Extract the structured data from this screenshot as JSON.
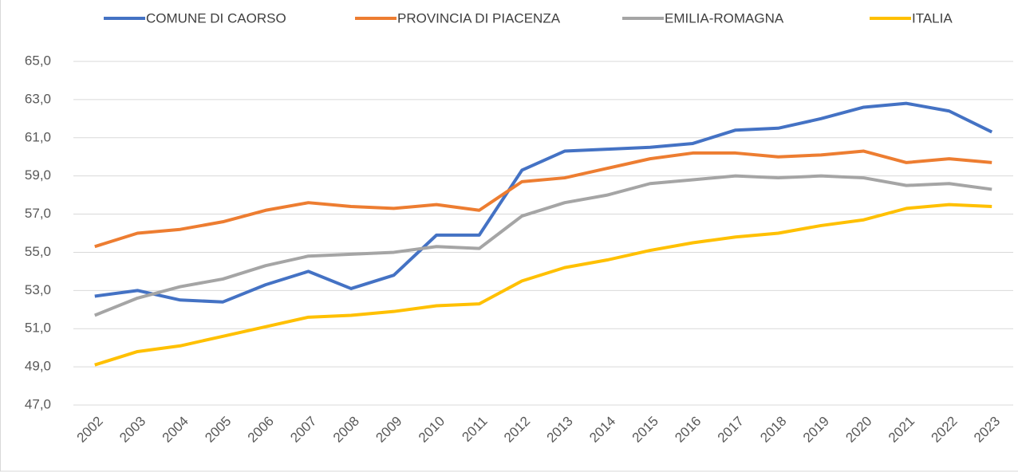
{
  "chart_data": {
    "type": "line",
    "categories": [
      "2002",
      "2003",
      "2004",
      "2005",
      "2006",
      "2007",
      "2008",
      "2009",
      "2010",
      "2011",
      "2012",
      "2013",
      "2014",
      "2015",
      "2016",
      "2017",
      "2018",
      "2019",
      "2020",
      "2021",
      "2022",
      "2023"
    ],
    "series": [
      {
        "name": "COMUNE DI CAORSO",
        "color": "#4472c4",
        "values": [
          52.7,
          53.0,
          52.5,
          52.4,
          53.3,
          54.0,
          53.1,
          53.8,
          55.9,
          55.9,
          59.3,
          60.3,
          60.4,
          60.5,
          60.7,
          61.4,
          61.5,
          62.0,
          62.6,
          62.8,
          62.4,
          61.3
        ]
      },
      {
        "name": "PROVINCIA DI PIACENZA",
        "color": "#ed7d31",
        "values": [
          55.3,
          56.0,
          56.2,
          56.6,
          57.2,
          57.6,
          57.4,
          57.3,
          57.5,
          57.2,
          58.7,
          58.9,
          59.4,
          59.9,
          60.2,
          60.2,
          60.0,
          60.1,
          60.3,
          59.7,
          59.9,
          59.7
        ]
      },
      {
        "name": "EMILIA-ROMAGNA",
        "color": "#a5a5a5",
        "values": [
          51.7,
          52.6,
          53.2,
          53.6,
          54.3,
          54.8,
          54.9,
          55.0,
          55.3,
          55.2,
          56.9,
          57.6,
          58.0,
          58.6,
          58.8,
          59.0,
          58.9,
          59.0,
          58.9,
          58.5,
          58.6,
          58.3
        ]
      },
      {
        "name": "ITALIA",
        "color": "#ffc000",
        "values": [
          49.1,
          49.8,
          50.1,
          50.6,
          51.1,
          51.6,
          51.7,
          51.9,
          52.2,
          52.3,
          53.5,
          54.2,
          54.6,
          55.1,
          55.5,
          55.8,
          56.0,
          56.4,
          56.7,
          57.3,
          57.5,
          57.4
        ]
      }
    ],
    "ylim": [
      47,
      65
    ],
    "yticks": [
      {
        "value": 47,
        "label": "47,0"
      },
      {
        "value": 49,
        "label": "49,0"
      },
      {
        "value": 51,
        "label": "51,0"
      },
      {
        "value": 53,
        "label": "53,0"
      },
      {
        "value": 55,
        "label": "55,0"
      },
      {
        "value": 57,
        "label": "57,0"
      },
      {
        "value": 59,
        "label": "59,0"
      },
      {
        "value": 61,
        "label": "61,0"
      },
      {
        "value": 63,
        "label": "63,0"
      },
      {
        "value": 65,
        "label": "65,0"
      }
    ],
    "grid": true,
    "legend": "top"
  }
}
